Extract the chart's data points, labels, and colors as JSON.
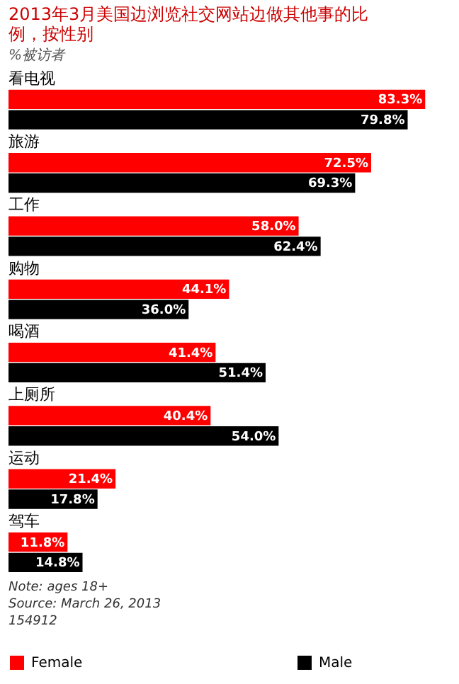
{
  "chart_data": {
    "type": "bar",
    "orientation": "horizontal",
    "title": "2013年3月美国边浏览社交网站边做其他事的比例，按性别",
    "subtitle": "%被访者",
    "categories": [
      "看电视",
      "旅游",
      "工作",
      "购物",
      "喝酒",
      "上厕所",
      "运动",
      "驾车"
    ],
    "series": [
      {
        "name": "Female",
        "color": "#ff0000",
        "values": [
          83.3,
          72.5,
          58.0,
          44.1,
          41.4,
          40.4,
          21.4,
          11.8
        ],
        "value_labels": [
          "83.3%",
          "72.5%",
          "58.0%",
          "44.1%",
          "41.4%",
          "40.4%",
          "21.4%",
          "11.8%"
        ]
      },
      {
        "name": "Male",
        "color": "#000000",
        "values": [
          79.8,
          69.3,
          62.4,
          36.0,
          51.4,
          54.0,
          17.8,
          14.8
        ],
        "value_labels": [
          "79.8%",
          "69.3%",
          "62.4%",
          "36.0%",
          "51.4%",
          "54.0%",
          "17.8%",
          "14.8%"
        ]
      }
    ],
    "legend": "bottom",
    "annotations": [
      "Note: ages 18+",
      "Source: March 26, 2013",
      "154912"
    ]
  }
}
